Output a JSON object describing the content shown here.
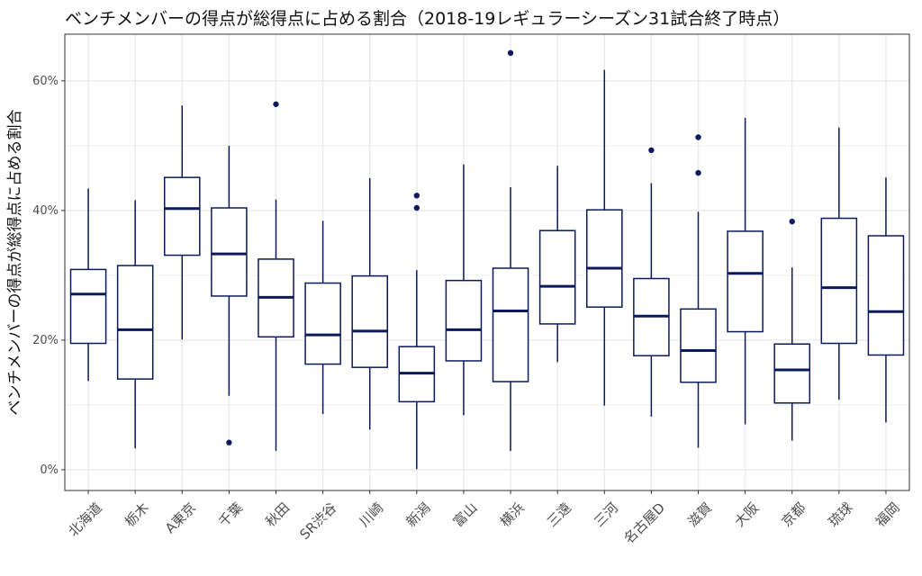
{
  "chart_data": {
    "type": "boxplot",
    "title": "ベンチメンバーの得点が総得点に占める割合（2018-19レギュラーシーズン31試合終了時点）",
    "xlabel": "",
    "ylabel": "ベンチメンバーの得点が総得点に占める割合",
    "ylim": [
      0,
      0.65
    ],
    "yticks": [
      0,
      0.2,
      0.4,
      0.6
    ],
    "ytick_labels": [
      "0%",
      "20%",
      "40%",
      "60%"
    ],
    "grid": true,
    "colors": {
      "box": "#0b1a5e",
      "grid": "#ebebeb",
      "panel_border": "#333333"
    },
    "categories": [
      "北海道",
      "栃木",
      "A東京",
      "千葉",
      "秋田",
      "SR渋谷",
      "川崎",
      "新潟",
      "富山",
      "横浜",
      "三遠",
      "三河",
      "名古屋D",
      "滋賀",
      "大阪",
      "京都",
      "琉球",
      "福岡"
    ],
    "boxes": [
      {
        "min": 0.137,
        "q1": 0.195,
        "median": 0.271,
        "q3": 0.309,
        "max": 0.434,
        "outliers": []
      },
      {
        "min": 0.033,
        "q1": 0.14,
        "median": 0.216,
        "q3": 0.315,
        "max": 0.416,
        "outliers": []
      },
      {
        "min": 0.201,
        "q1": 0.331,
        "median": 0.403,
        "q3": 0.451,
        "max": 0.562,
        "outliers": []
      },
      {
        "min": 0.114,
        "q1": 0.268,
        "median": 0.333,
        "q3": 0.404,
        "max": 0.5,
        "outliers": [
          0.042
        ]
      },
      {
        "min": 0.029,
        "q1": 0.205,
        "median": 0.266,
        "q3": 0.325,
        "max": 0.417,
        "outliers": [
          0.564
        ]
      },
      {
        "min": 0.086,
        "q1": 0.163,
        "median": 0.208,
        "q3": 0.288,
        "max": 0.384,
        "outliers": []
      },
      {
        "min": 0.062,
        "q1": 0.158,
        "median": 0.214,
        "q3": 0.299,
        "max": 0.45,
        "outliers": []
      },
      {
        "min": 0.001,
        "q1": 0.105,
        "median": 0.149,
        "q3": 0.19,
        "max": 0.308,
        "outliers": [
          0.404,
          0.423
        ]
      },
      {
        "min": 0.084,
        "q1": 0.168,
        "median": 0.216,
        "q3": 0.292,
        "max": 0.471,
        "outliers": []
      },
      {
        "min": 0.029,
        "q1": 0.136,
        "median": 0.245,
        "q3": 0.311,
        "max": 0.436,
        "outliers": [
          0.643
        ]
      },
      {
        "min": 0.166,
        "q1": 0.225,
        "median": 0.283,
        "q3": 0.369,
        "max": 0.469,
        "outliers": []
      },
      {
        "min": 0.099,
        "q1": 0.251,
        "median": 0.311,
        "q3": 0.401,
        "max": 0.617,
        "outliers": []
      },
      {
        "min": 0.082,
        "q1": 0.176,
        "median": 0.237,
        "q3": 0.295,
        "max": 0.442,
        "outliers": [
          0.493
        ]
      },
      {
        "min": 0.034,
        "q1": 0.135,
        "median": 0.184,
        "q3": 0.248,
        "max": 0.398,
        "outliers": [
          0.458,
          0.513
        ]
      },
      {
        "min": 0.07,
        "q1": 0.213,
        "median": 0.303,
        "q3": 0.368,
        "max": 0.543,
        "outliers": []
      },
      {
        "min": 0.045,
        "q1": 0.103,
        "median": 0.154,
        "q3": 0.194,
        "max": 0.312,
        "outliers": [
          0.383
        ]
      },
      {
        "min": 0.108,
        "q1": 0.195,
        "median": 0.281,
        "q3": 0.388,
        "max": 0.528,
        "outliers": []
      },
      {
        "min": 0.073,
        "q1": 0.177,
        "median": 0.244,
        "q3": 0.361,
        "max": 0.451,
        "outliers": []
      }
    ]
  }
}
